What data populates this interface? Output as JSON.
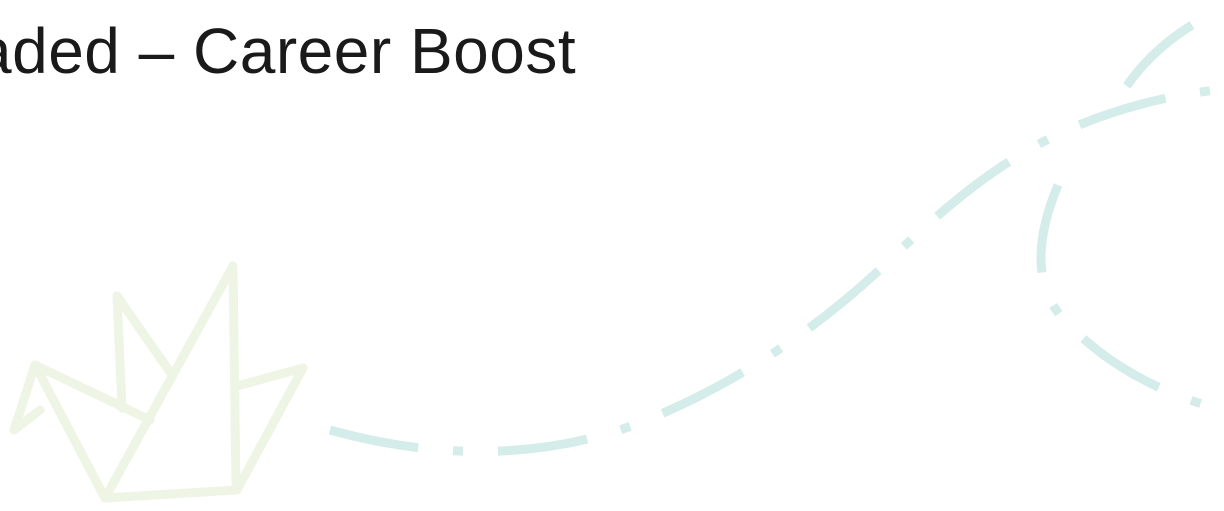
{
  "title": "aded – Career Boost"
}
